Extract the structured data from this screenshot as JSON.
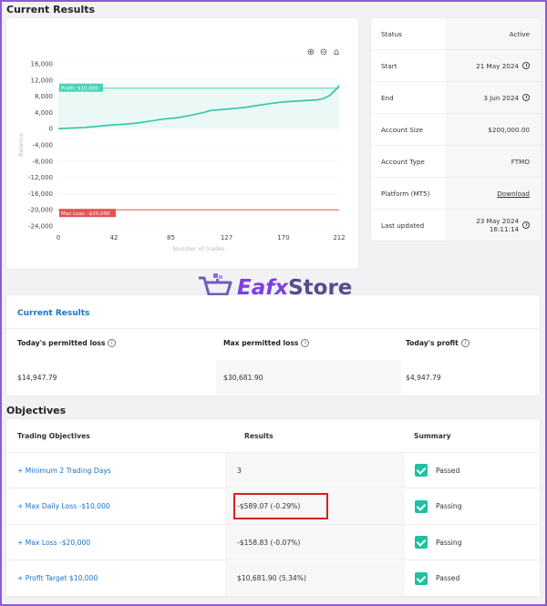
{
  "headings": {
    "current_results": "Current Results",
    "objectives": "Objectives"
  },
  "chart": {
    "y_ticks": [
      "16,000",
      "12,000",
      "8,000",
      "4,000",
      "0",
      "-4,000",
      "-8,000",
      "-12,000",
      "-16,000",
      "-20,000",
      "-24,000"
    ],
    "x_ticks": [
      "0",
      "42",
      "85",
      "127",
      "170",
      "212"
    ],
    "xlabel": "Number of trades",
    "ylabel": "Balance",
    "profit_label": "Profit: $10,000",
    "loss_label": "Max Loss: -$20,000",
    "colors": {
      "line": "#2ec4a7",
      "profit": "#49d3b5",
      "loss": "#e55353"
    }
  },
  "chart_data": {
    "type": "line",
    "title": "",
    "xlabel": "Number of trades",
    "ylabel": "Balance",
    "xlim": [
      0,
      212
    ],
    "ylim": [
      -24000,
      16000
    ],
    "x_ticks": [
      0,
      42,
      85,
      127,
      170,
      212
    ],
    "y_ticks": [
      16000,
      12000,
      8000,
      4000,
      0,
      -4000,
      -8000,
      -12000,
      -16000,
      -20000,
      -24000
    ],
    "annotations": [
      {
        "label": "Profit: $10,000",
        "y": 10000
      },
      {
        "label": "Max Loss: -$20,000",
        "y": -20000
      }
    ],
    "series": [
      {
        "x": [
          0,
          10,
          20,
          30,
          40,
          50,
          60,
          70,
          80,
          90,
          100,
          110,
          115,
          120,
          130,
          140,
          150,
          160,
          170,
          180,
          190,
          195,
          200,
          205,
          210,
          212
        ],
        "y": [
          0,
          150,
          300,
          600,
          900,
          1100,
          1400,
          1900,
          2400,
          2700,
          3300,
          4000,
          4500,
          4600,
          4900,
          5200,
          5700,
          6200,
          6600,
          6800,
          7000,
          7100,
          7400,
          8200,
          9800,
          10681
        ]
      }
    ]
  },
  "toolbar": {
    "zoom_in_icon": "plus-circle",
    "zoom_out_icon": "minus-circle",
    "home_icon": "home"
  },
  "details": [
    {
      "label": "Status",
      "value": "Active",
      "clock": false
    },
    {
      "label": "Start",
      "value": "21 May 2024",
      "clock": true
    },
    {
      "label": "End",
      "value": "3 Jun 2024",
      "clock": true
    },
    {
      "label": "Account Size",
      "value": "$200,000.00",
      "clock": false
    },
    {
      "label": "Account Type",
      "value": "FTMO",
      "clock": false
    },
    {
      "label": "Platform (MT5)",
      "value": "Download",
      "clock": false
    },
    {
      "label": "Last updated",
      "value": "23 May 2024 16:11:14",
      "clock": true
    }
  ],
  "watermark": {
    "part1": "Eafx",
    "part2": "Store"
  },
  "current_results": {
    "title": "Current Results",
    "headers": [
      "Today's permitted loss",
      "Max permitted loss",
      "Today's profit"
    ],
    "values": [
      "$14,947.79",
      "$30,681.90",
      "$4,947.79"
    ]
  },
  "objectives": {
    "headers": [
      "Trading Objectives",
      "Results",
      "Summary"
    ],
    "rows": [
      {
        "objective": "+ Minimum 2 Trading Days",
        "result": "3",
        "summary": "Passed"
      },
      {
        "objective": "+ Max Daily Loss -$10,000",
        "result": "-$589.07 (-0.29%)",
        "summary": "Passing"
      },
      {
        "objective": "+ Max Loss -$20,000",
        "result": "-$158.83 (-0.07%)",
        "summary": "Passing"
      },
      {
        "objective": "+ Profit Target $10,000",
        "result": "$10,681.90 (5.34%)",
        "summary": "Passed"
      }
    ]
  }
}
